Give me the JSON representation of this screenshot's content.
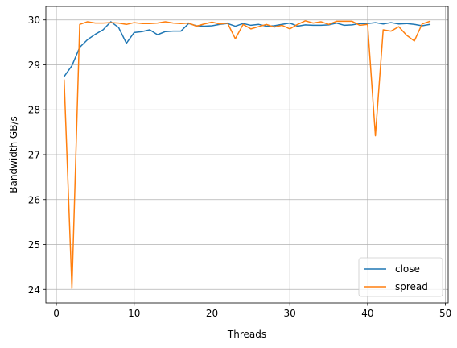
{
  "chart_data": {
    "type": "line",
    "xlabel": "Threads",
    "ylabel": "Bandwidth GB/s",
    "xlim": [
      -1.35,
      50.35
    ],
    "ylim": [
      23.7,
      30.3
    ],
    "xticks": [
      0,
      10,
      20,
      30,
      40,
      50
    ],
    "yticks": [
      24,
      25,
      26,
      27,
      28,
      29,
      30
    ],
    "grid": true,
    "legend": "lower-right",
    "x": [
      1,
      2,
      3,
      4,
      5,
      6,
      7,
      8,
      9,
      10,
      11,
      12,
      13,
      14,
      15,
      16,
      17,
      18,
      19,
      20,
      21,
      22,
      23,
      24,
      25,
      26,
      27,
      28,
      29,
      30,
      31,
      32,
      33,
      34,
      35,
      36,
      37,
      38,
      39,
      40,
      41,
      42,
      43,
      44,
      45,
      46,
      47,
      48
    ],
    "series": [
      {
        "name": "close",
        "color": "#1f77b4",
        "values": [
          28.74,
          28.98,
          29.39,
          29.56,
          29.68,
          29.78,
          29.96,
          29.83,
          29.48,
          29.72,
          29.74,
          29.78,
          29.67,
          29.74,
          29.75,
          29.75,
          29.92,
          29.87,
          29.86,
          29.87,
          29.9,
          29.92,
          29.86,
          29.92,
          29.88,
          29.9,
          29.86,
          29.87,
          29.9,
          29.93,
          29.86,
          29.89,
          29.88,
          29.88,
          29.89,
          29.93,
          29.88,
          29.89,
          29.92,
          29.92,
          29.94,
          29.91,
          29.94,
          29.91,
          29.92,
          29.9,
          29.87,
          29.9
        ]
      },
      {
        "name": "spread",
        "color": "#ff7f0e",
        "values": [
          28.66,
          24.02,
          29.9,
          29.96,
          29.93,
          29.93,
          29.94,
          29.93,
          29.9,
          29.94,
          29.92,
          29.92,
          29.93,
          29.96,
          29.93,
          29.92,
          29.93,
          29.86,
          29.91,
          29.95,
          29.91,
          29.93,
          29.58,
          29.9,
          29.8,
          29.85,
          29.9,
          29.84,
          29.88,
          29.8,
          29.9,
          29.98,
          29.93,
          29.96,
          29.9,
          29.97,
          29.97,
          29.97,
          29.88,
          29.9,
          27.42,
          29.78,
          29.75,
          29.85,
          29.66,
          29.53,
          29.91,
          29.97
        ]
      }
    ]
  }
}
